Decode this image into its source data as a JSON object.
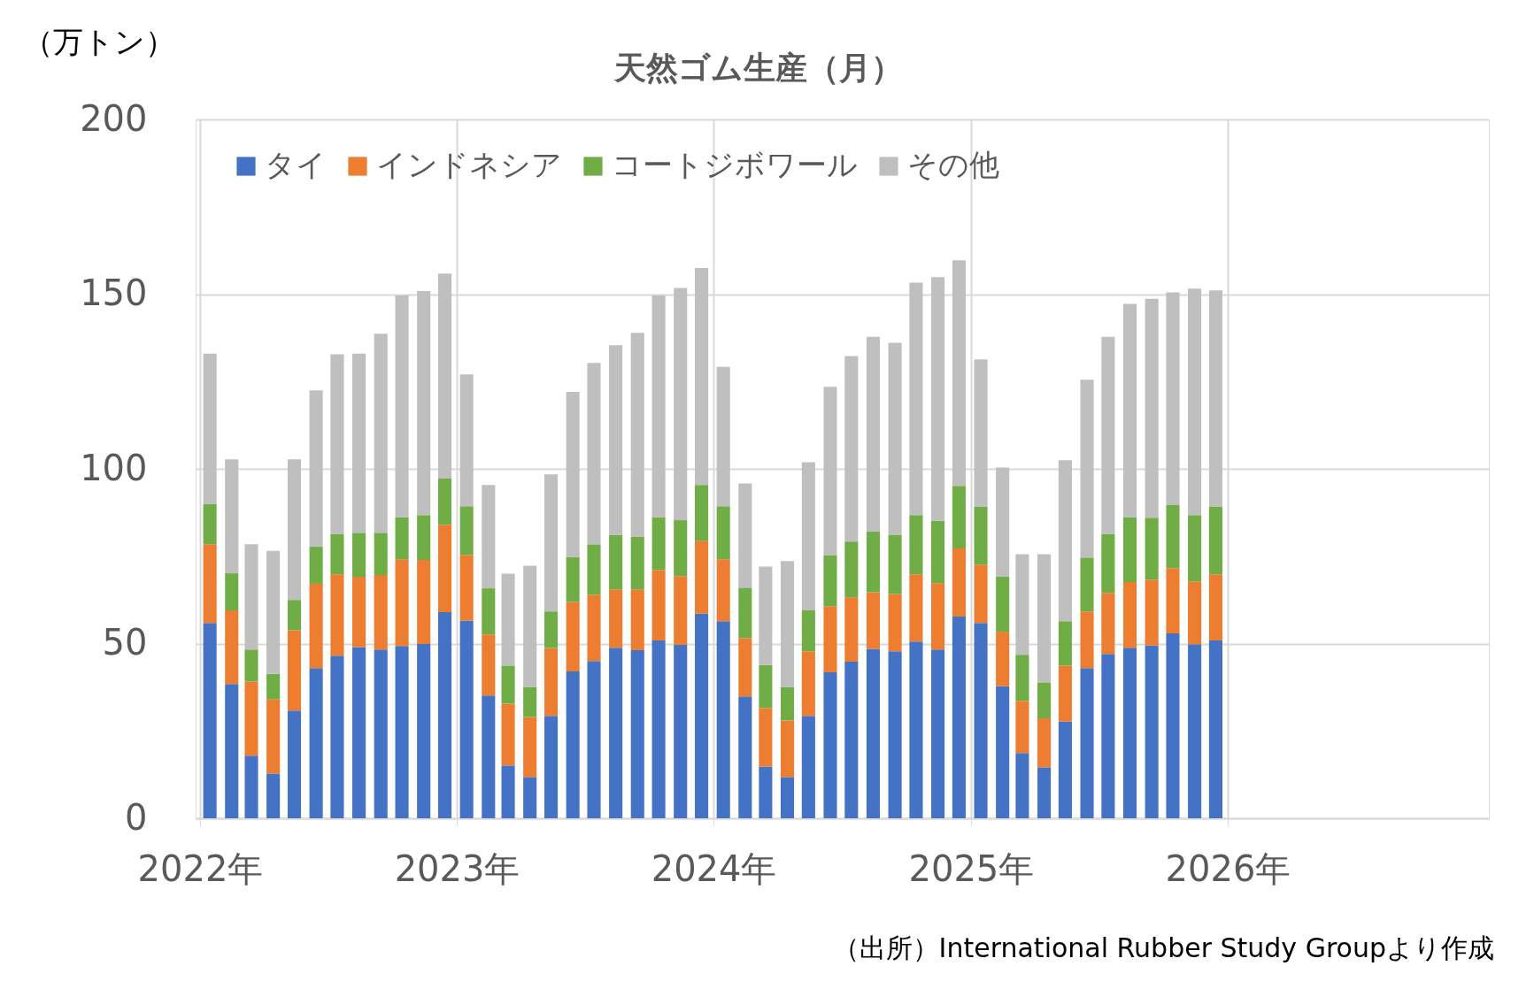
{
  "chart_data": {
    "type": "bar",
    "stacked": true,
    "title": "天然ゴム生産（月）",
    "ylabel": "（万トン）",
    "x": [
      "2022-01-15",
      "2022-02-15",
      "2022-03-15",
      "2022-04-15",
      "2022-05-15",
      "2022-06-15",
      "2022-07-15",
      "2022-08-15",
      "2022-09-15",
      "2022-10-15",
      "2022-11-15",
      "2022-12-15",
      "2023-01-15",
      "2023-02-15",
      "2023-03-15",
      "2023-04-15",
      "2023-05-15",
      "2023-06-15",
      "2023-07-15",
      "2023-08-15",
      "2023-09-15",
      "2023-10-15",
      "2023-11-15",
      "2023-12-15",
      "2024-01-15",
      "2024-02-15",
      "2024-03-15",
      "2024-04-15",
      "2024-05-15",
      "2024-06-15",
      "2024-07-15",
      "2024-08-15",
      "2024-09-15",
      "2024-10-15",
      "2024-11-15",
      "2024-12-15",
      "2025-01-15",
      "2025-02-15",
      "2025-03-15",
      "2025-04-15",
      "2025-05-15",
      "2025-06-15",
      "2025-07-15",
      "2025-08-15",
      "2025-09-15",
      "2025-10-15",
      "2025-11-15",
      "2025-12-15"
    ],
    "series": [
      {
        "name": "タイ",
        "color": "#4472c4",
        "values": [
          55.9,
          38.4,
          17.9,
          12.8,
          30.8,
          43.0,
          46.5,
          49.0,
          48.3,
          49.3,
          49.9,
          59.0,
          56.6,
          35.1,
          15.1,
          11.8,
          29.3,
          42.0,
          45.0,
          48.8,
          48.1,
          50.9,
          49.6,
          58.6,
          56.4,
          34.9,
          14.8,
          11.8,
          29.3,
          41.8,
          44.8,
          48.5,
          47.8,
          50.6,
          48.3,
          57.7,
          55.9,
          37.8,
          18.7,
          14.6,
          27.7,
          43.0,
          47.0,
          48.8,
          49.4,
          52.9,
          49.8,
          50.9
        ]
      },
      {
        "name": "インドネシア",
        "color": "#ed7d31",
        "values": [
          22.5,
          21.1,
          21.2,
          21.3,
          23.0,
          24.1,
          23.3,
          20.1,
          21.3,
          24.8,
          24.0,
          25.0,
          18.8,
          17.5,
          17.7,
          17.2,
          19.4,
          19.9,
          19.0,
          16.7,
          17.4,
          20.2,
          19.7,
          20.8,
          17.7,
          16.7,
          16.8,
          16.2,
          18.5,
          18.9,
          18.4,
          16.2,
          16.4,
          19.2,
          19.0,
          19.5,
          16.7,
          15.6,
          14.9,
          14.0,
          16.0,
          16.2,
          17.5,
          18.8,
          18.9,
          18.7,
          18.0,
          18.9
        ]
      },
      {
        "name": "コートジボワール",
        "color": "#70ad47",
        "values": [
          11.6,
          10.6,
          9.2,
          7.2,
          8.7,
          10.6,
          11.6,
          12.6,
          12.1,
          12.1,
          12.9,
          13.2,
          13.9,
          13.2,
          10.9,
          8.6,
          10.5,
          12.9,
          14.4,
          15.6,
          15.0,
          15.1,
          16.0,
          16.0,
          15.2,
          14.4,
          12.3,
          9.6,
          11.7,
          14.5,
          16.0,
          17.3,
          16.8,
          17.0,
          17.8,
          17.9,
          16.5,
          15.7,
          13.2,
          10.3,
          12.7,
          15.4,
          16.9,
          18.6,
          17.7,
          18.0,
          19.0,
          19.3
        ]
      },
      {
        "name": "その他",
        "color": "#bfbfbf",
        "values": [
          43.0,
          32.6,
          30.1,
          35.2,
          40.2,
          44.8,
          51.4,
          51.3,
          57.0,
          63.4,
          64.1,
          58.7,
          37.7,
          29.6,
          26.3,
          34.7,
          39.2,
          47.2,
          51.9,
          54.3,
          58.4,
          63.4,
          66.5,
          62.1,
          39.9,
          29.8,
          28.1,
          36.0,
          42.4,
          48.3,
          53.1,
          55.8,
          55.1,
          66.5,
          69.8,
          64.6,
          42.2,
          31.3,
          28.8,
          36.7,
          46.1,
          50.9,
          56.4,
          61.0,
          62.7,
          60.9,
          64.8,
          62.0
        ]
      }
    ],
    "xlim": [
      "2022",
      "2027"
    ],
    "xticks": [
      {
        "value": "2022",
        "label": "2022年"
      },
      {
        "value": "2023",
        "label": "2023年"
      },
      {
        "value": "2024",
        "label": "2024年"
      },
      {
        "value": "2025",
        "label": "2025年"
      },
      {
        "value": "2026",
        "label": "2026年"
      }
    ],
    "ylim": [
      0,
      200
    ],
    "yticks": [
      0,
      50,
      100,
      150,
      200
    ],
    "grid": true,
    "legend": "top left",
    "annotations": [
      "（出所）International Rubber Study Groupより作成"
    ]
  }
}
